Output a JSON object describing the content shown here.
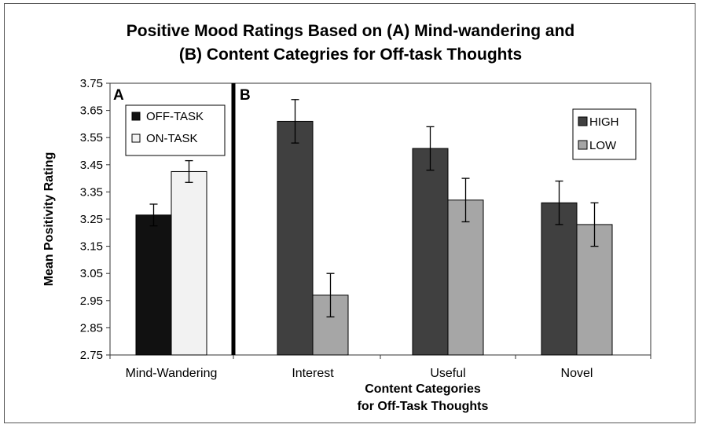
{
  "chart_data": {
    "type": "bar",
    "title_lines": [
      "Positive Mood Ratings Based on (A) Mind-wandering and",
      "(B) Content Categries for Off-task Thoughts"
    ],
    "ylabel": "Mean Positivity Rating",
    "ylim": [
      2.75,
      3.75
    ],
    "yticks": [
      "2.75",
      "2.85",
      "2.95",
      "3.05",
      "3.15",
      "3.25",
      "3.35",
      "3.45",
      "3.55",
      "3.65",
      "3.75"
    ],
    "xlabel_lines": [
      "Content Categories",
      "for Off-Task Thoughts"
    ],
    "panels": [
      {
        "label": "A",
        "categories": [
          "Mind-Wandering"
        ],
        "series": [
          {
            "name": "OFF-TASK",
            "color": "#111111",
            "values": [
              3.265
            ],
            "errors": [
              0.04
            ]
          },
          {
            "name": "ON-TASK",
            "color": "#f2f2f2",
            "values": [
              3.425
            ],
            "errors": [
              0.04
            ]
          }
        ]
      },
      {
        "label": "B",
        "categories": [
          "Interest",
          "Useful",
          "Novel"
        ],
        "series": [
          {
            "name": "HIGH",
            "color": "#404040",
            "values": [
              3.61,
              3.51,
              3.31
            ],
            "errors": [
              0.08,
              0.08,
              0.08
            ]
          },
          {
            "name": "LOW",
            "color": "#a6a6a6",
            "values": [
              2.97,
              3.32,
              3.23
            ],
            "errors": [
              0.08,
              0.08,
              0.08
            ]
          }
        ]
      }
    ]
  }
}
